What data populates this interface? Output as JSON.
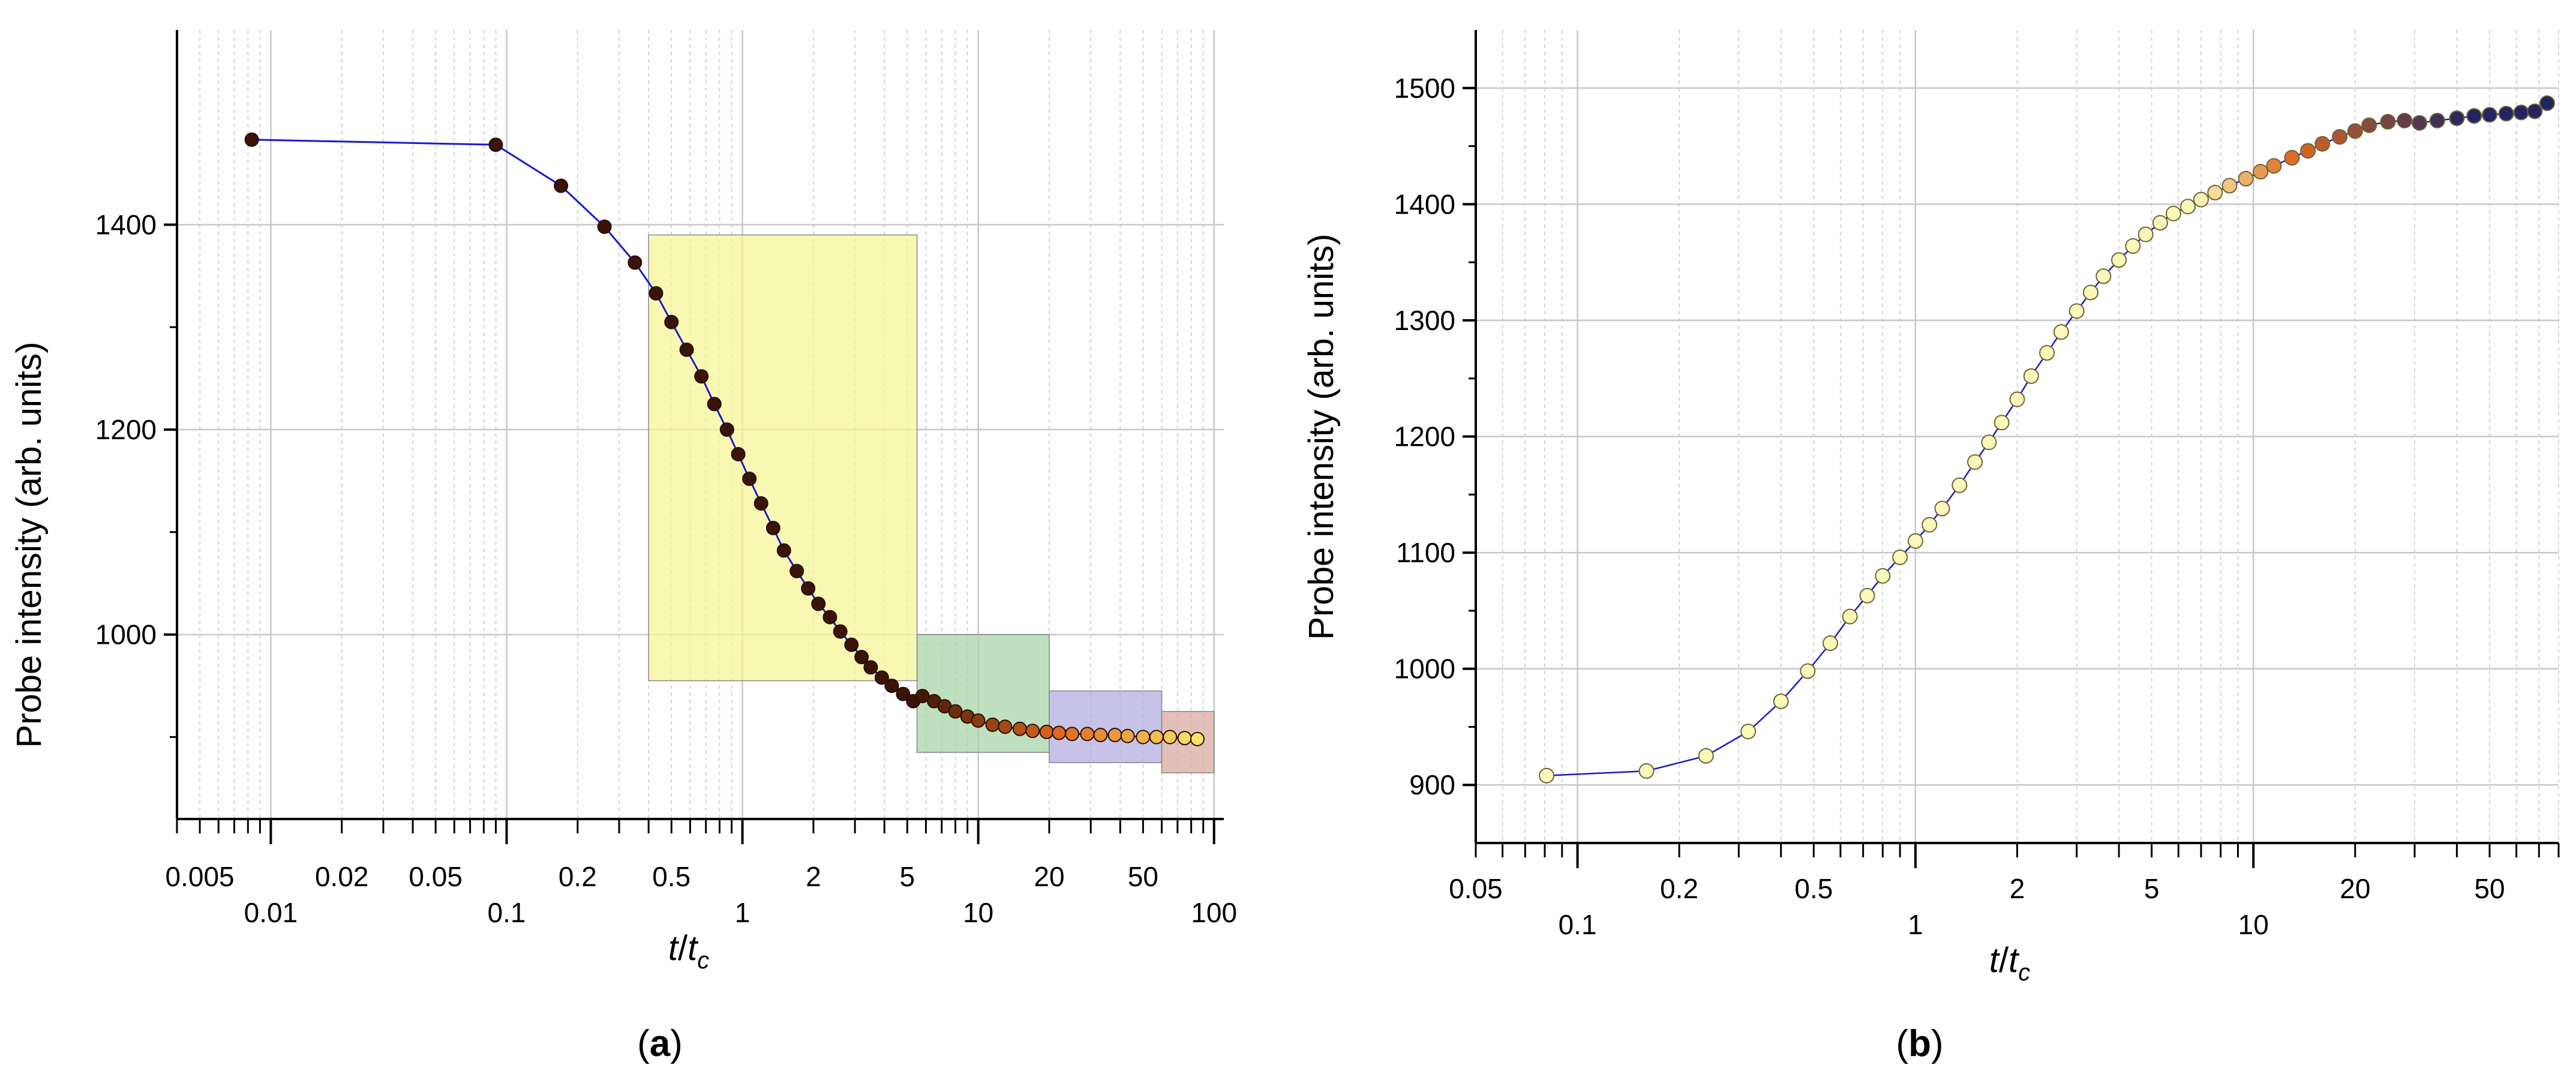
{
  "figure": {
    "panel_a_label_open": "(",
    "panel_a_label_letter": "a",
    "panel_a_label_close": ")",
    "panel_b_label_open": "(",
    "panel_b_label_letter": "b",
    "panel_b_label_close": ")"
  },
  "colors": {
    "fit_line": "#1a1acc",
    "grid": "#c8c8c8",
    "region_yellow": "#f7f59a",
    "region_green": "#a9d6a9",
    "region_purple": "#b4aee0",
    "region_brown": "#d9a9a3",
    "marker_dark": "#3a1406",
    "marker_orange": "#e06a20",
    "marker_yellow": "#f8e46a",
    "marker_pale": "#fbf7b8",
    "marker_navy": "#232460"
  },
  "chart_data": [
    {
      "panel": "a",
      "type": "scatter",
      "xscale": "log",
      "ylabel": "Probe intensity (arb. units)",
      "xlabel": {
        "base": "t",
        "divider": "/",
        "sub_base": "t",
        "subscript": "c"
      },
      "xlim": [
        0.004,
        110
      ],
      "ylim": [
        820,
        1590
      ],
      "xticks_upper": [
        "0.005",
        "0.02",
        "0.05",
        "0.2",
        "0.5",
        "2",
        "5",
        "20",
        "50"
      ],
      "xticks_lower": [
        "0.01",
        "0.1",
        "1",
        "10",
        "100"
      ],
      "yticks": [
        "1000",
        "1200",
        "1400"
      ],
      "grid": true,
      "shaded_regions": [
        {
          "x": [
            0.4,
            5.5
          ],
          "y": [
            955,
            1390
          ],
          "color": "yellow"
        },
        {
          "x": [
            5.5,
            20
          ],
          "y": [
            885,
            1000
          ],
          "color": "green"
        },
        {
          "x": [
            20,
            60
          ],
          "y": [
            875,
            945
          ],
          "color": "purple"
        },
        {
          "x": [
            60,
            100
          ],
          "y": [
            865,
            925
          ],
          "color": "brown"
        }
      ],
      "series": [
        {
          "x": [
            0.0083,
            0.09,
            0.17,
            0.26,
            0.35,
            0.43,
            0.5,
            0.58,
            0.67,
            0.76,
            0.86,
            0.96,
            1.07,
            1.2,
            1.35,
            1.5,
            1.7,
            1.9,
            2.1,
            2.35,
            2.6,
            2.9,
            3.2,
            3.5,
            3.9,
            4.3,
            4.8,
            5.3,
            5.8,
            6.5,
            7.2,
            8,
            9,
            10,
            11.5,
            13,
            15,
            17,
            19.5,
            22,
            25,
            29,
            33,
            38,
            43,
            50,
            57,
            65,
            75,
            85
          ],
          "y": [
            1483,
            1478,
            1438,
            1398,
            1363,
            1333,
            1305,
            1278,
            1252,
            1225,
            1200,
            1176,
            1152,
            1128,
            1104,
            1082,
            1062,
            1045,
            1030,
            1017,
            1003,
            990,
            978,
            968,
            958,
            950,
            942,
            935,
            940,
            935,
            930,
            925,
            920,
            916,
            912,
            910,
            908,
            906,
            905,
            904,
            903,
            903,
            902,
            902,
            901,
            900,
            900,
            900,
            899,
            898
          ]
        }
      ]
    },
    {
      "panel": "b",
      "type": "scatter",
      "xscale": "log",
      "ylabel": "Probe intensity (arb. units)",
      "xlabel": {
        "base": "t",
        "divider": "/",
        "sub_base": "t",
        "subscript": "c"
      },
      "xlim": [
        0.05,
        80
      ],
      "ylim": [
        850,
        1550
      ],
      "xticks_upper": [
        "0.05",
        "0.2",
        "0.5",
        "2",
        "5",
        "20",
        "50"
      ],
      "xticks_lower": [
        "0.1",
        "1",
        "10"
      ],
      "yticks": [
        "900",
        "1000",
        "1100",
        "1200",
        "1300",
        "1400",
        "1500"
      ],
      "grid": true,
      "series": [
        {
          "x": [
            0.081,
            0.16,
            0.24,
            0.32,
            0.4,
            0.48,
            0.56,
            0.64,
            0.72,
            0.8,
            0.9,
            1.0,
            1.1,
            1.2,
            1.35,
            1.5,
            1.65,
            1.8,
            2.0,
            2.2,
            2.45,
            2.7,
            3.0,
            3.3,
            3.6,
            4.0,
            4.4,
            4.8,
            5.3,
            5.8,
            6.4,
            7.0,
            7.7,
            8.5,
            9.5,
            10.5,
            11.5,
            13,
            14.5,
            16,
            18,
            20,
            22,
            25,
            28,
            31,
            35,
            40,
            45,
            50,
            56,
            62,
            68,
            74
          ],
          "y": [
            908,
            912,
            925,
            946,
            972,
            998,
            1022,
            1045,
            1063,
            1080,
            1096,
            1110,
            1124,
            1138,
            1158,
            1178,
            1195,
            1212,
            1232,
            1252,
            1272,
            1290,
            1308,
            1324,
            1338,
            1352,
            1364,
            1374,
            1384,
            1392,
            1398,
            1404,
            1410,
            1416,
            1422,
            1428,
            1433,
            1440,
            1446,
            1452,
            1458,
            1463,
            1468,
            1471,
            1472,
            1470,
            1472,
            1474,
            1476,
            1477,
            1478,
            1479,
            1480,
            1487
          ]
        }
      ]
    }
  ]
}
